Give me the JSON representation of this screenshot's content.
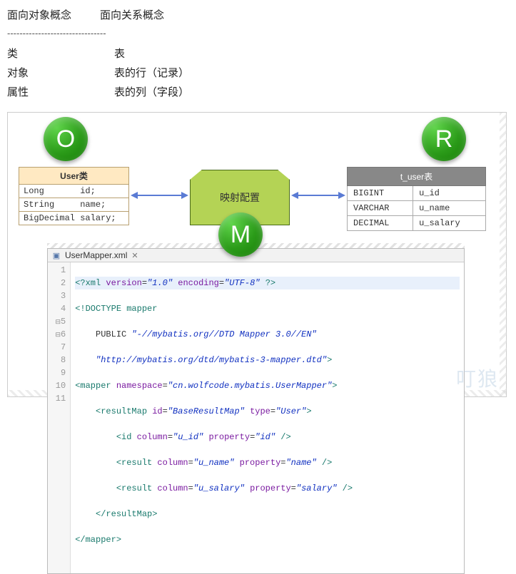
{
  "headers": {
    "oo": "面向对象概念",
    "rel": "面向关系概念"
  },
  "dashed": "--------------------------------",
  "mapping_rows": [
    {
      "oo": "类",
      "rel": "表"
    },
    {
      "oo": "对象",
      "rel": "表的行（记录）"
    },
    {
      "oo": "属性",
      "rel": "表的列（字段）"
    }
  ],
  "circles": {
    "o": "O",
    "r": "R",
    "m": "M"
  },
  "class_table": {
    "title": "User类",
    "title_bg": "#ffe9c2",
    "border_color": "#b8a070",
    "rows": [
      "Long       id;",
      "String     name;",
      "BigDecimal salary;"
    ]
  },
  "center_box": {
    "label": "映射配置",
    "bg": "#b4d355",
    "border": "#4a6b1a"
  },
  "db_table": {
    "title": "t_user表",
    "header_bg": "#888888",
    "header_fg": "#ffffff",
    "rows": [
      {
        "type": "BIGINT",
        "col": "u_id"
      },
      {
        "type": "VARCHAR",
        "col": "u_name"
      },
      {
        "type": "DECIMAL",
        "col": "u_salary"
      }
    ]
  },
  "arrow_color": "#5a7bd4",
  "circle_gradient": {
    "light": "#5fd44a",
    "mid": "#2b9b19",
    "dark": "#157a05"
  },
  "editor": {
    "filename": "UserMapper.xml",
    "close_glyph": "✕",
    "line_numbers": [
      "1",
      "2",
      "3",
      "4",
      "5",
      "6",
      "7",
      "8",
      "9",
      "10",
      "11"
    ],
    "fold_markers_at": [
      5,
      6
    ],
    "code": {
      "l1_pre": "<?xml ",
      "l1_attr1": "version",
      "l1_val1": "\"1.0\"",
      "l1_attr2": "encoding",
      "l1_val2": "\"UTF-8\"",
      "l1_post": " ?>",
      "l2": "<!DOCTYPE mapper",
      "l3_pre": "    PUBLIC ",
      "l3_str": "\"-//mybatis.org//DTD Mapper 3.0//EN\"",
      "l4_pre": "    ",
      "l4_str": "\"http://mybatis.org/dtd/mybatis-3-mapper.dtd\"",
      "l4_post": ">",
      "l5_open": "<mapper ",
      "l5_attr": "namespace",
      "l5_val": "\"cn.wolfcode.mybatis.UserMapper\"",
      "l5_close": ">",
      "l6_open": "    <resultMap ",
      "l6_a1": "id",
      "l6_v1": "\"BaseResultMap\"",
      "l6_a2": "type",
      "l6_v2": "\"User\"",
      "l6_close": ">",
      "l7_open": "        <id ",
      "l7_a1": "column",
      "l7_v1": "\"u_id\"",
      "l7_a2": "property",
      "l7_v2": "\"id\"",
      "l7_close": " />",
      "l8_open": "        <result ",
      "l8_a1": "column",
      "l8_v1": "\"u_name\"",
      "l8_a2": "property",
      "l8_v2": "\"name\"",
      "l8_close": " />",
      "l9_open": "        <result ",
      "l9_a1": "column",
      "l9_v1": "\"u_salary\"",
      "l9_a2": "property",
      "l9_v2": "\"salary\"",
      "l9_close": " />",
      "l10": "    </resultMap>",
      "l11": "</mapper>"
    },
    "colors": {
      "tag": "#1a7a6d",
      "attr": "#7a1aa0",
      "string": "#1030c0",
      "gutter_bg": "#f6f6f6",
      "highlight_bg": "#e8f0fb"
    }
  },
  "watermark": "叮狼"
}
